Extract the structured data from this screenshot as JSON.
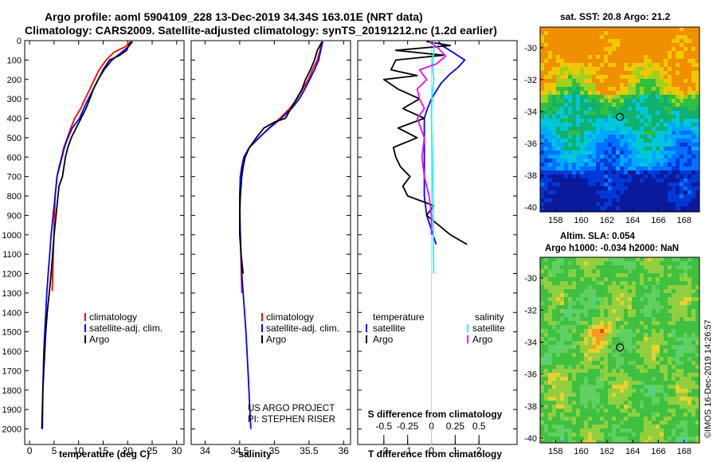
{
  "title": {
    "line1": "Argo profile: aoml 5904109_228 13-Dec-2019 34.34S 163.01E (NRT data)",
    "line2": "Climatology: CARS2009. Satellite-adjusted climatology: synTS_20191212.nc (1.2d earlier)"
  },
  "panel_titles": {
    "sst": "sat. SST: 20.8 Argo: 21.2",
    "sla1": "Altim. SLA: 0.054",
    "sla2": "Argo h1000: -0.034 h2000: NaN"
  },
  "credits": {
    "line1": "US ARGO PROJECT",
    "line2": "PI: STEPHEN RISER",
    "stamp": "©IMOS 16-Dec-2019 14:26:57"
  },
  "colors": {
    "argo": "#000000",
    "climatology": "#ff0000",
    "satellite": "#0000ff",
    "salinity_satellite": "#00ffff",
    "salinity_argo": "#ff00ff"
  },
  "chart_data": [
    {
      "type": "line",
      "xlabel": "temperature (deg C)",
      "ylabel": "",
      "xlim": [
        -1,
        31.5
      ],
      "ylim": [
        2080,
        0
      ],
      "xticks": [
        0,
        5,
        10,
        15,
        20,
        25,
        30
      ],
      "yticks": [
        0,
        100,
        200,
        300,
        400,
        500,
        600,
        700,
        800,
        900,
        1000,
        1100,
        1200,
        1300,
        1400,
        1500,
        1600,
        1700,
        1800,
        1900,
        2000
      ],
      "legend": [
        "climatology",
        "satellite-adj. clim.",
        "Argo"
      ],
      "series": [
        {
          "name": "climatology",
          "color": "#ff0000",
          "x": [
            20.6,
            19.6,
            17.2,
            15.6,
            14.2,
            13.2,
            12.3,
            11.3,
            10.4,
            9.2,
            8.4,
            7.7,
            7.0,
            6.5,
            6.0,
            5.6,
            5.2,
            4.6
          ],
          "y": [
            5,
            30,
            60,
            100,
            150,
            200,
            250,
            300,
            350,
            400,
            450,
            500,
            550,
            600,
            650,
            700,
            800,
            1290
          ]
        },
        {
          "name": "satellite-adj. clim.",
          "color": "#0000ff",
          "x": [
            21.0,
            20.2,
            18.8,
            16.8,
            15.2,
            14.0,
            13.0,
            11.4,
            10.2,
            8.7,
            7.8,
            7.1,
            6.6,
            6.1,
            5.6,
            5.2,
            4.8,
            4.4,
            4.1,
            3.8,
            3.5,
            3.3,
            3.1,
            2.9,
            2.7,
            2.6
          ],
          "y": [
            5,
            30,
            60,
            100,
            150,
            200,
            250,
            330,
            400,
            450,
            500,
            550,
            600,
            650,
            700,
            800,
            900,
            1000,
            1100,
            1200,
            1300,
            1400,
            1500,
            1600,
            1800,
            2000
          ]
        },
        {
          "name": "Argo",
          "color": "#000000",
          "x": [
            20.8,
            20.2,
            19.8,
            18.4,
            16.3,
            15.0,
            14.0,
            13.0,
            12.3,
            11.5,
            10.5,
            9.5,
            8.5,
            7.8,
            7.3,
            6.7,
            6.0,
            5.8,
            5.4,
            5.0,
            4.7,
            4.4,
            4.0,
            3.6,
            3.3,
            3.1,
            2.9,
            2.7,
            2.5
          ],
          "y": [
            5,
            25,
            50,
            75,
            100,
            150,
            200,
            250,
            300,
            350,
            400,
            450,
            500,
            550,
            600,
            700,
            750,
            800,
            900,
            1000,
            1100,
            1200,
            1300,
            1400,
            1500,
            1600,
            1700,
            1800,
            2000
          ]
        }
      ]
    },
    {
      "type": "line",
      "xlabel": "salinity",
      "ylabel": "",
      "xlim": [
        33.8,
        36.1
      ],
      "ylim": [
        2080,
        0
      ],
      "xticks": [
        34,
        34.5,
        35,
        35.5,
        36
      ],
      "legend": [
        "climatology",
        "satellite-adj. clim.",
        "Argo"
      ],
      "series": [
        {
          "name": "climatology",
          "color": "#ff0000",
          "x": [
            35.69,
            35.66,
            35.62,
            35.55,
            35.49,
            35.41,
            35.33,
            35.22,
            35.08,
            34.92,
            34.78,
            34.64,
            34.56,
            34.53,
            34.51,
            34.5,
            34.51,
            34.53
          ],
          "y": [
            5,
            50,
            100,
            150,
            200,
            250,
            300,
            350,
            400,
            450,
            500,
            550,
            600,
            650,
            700,
            800,
            1000,
            1300
          ]
        },
        {
          "name": "satellite-adj. clim.",
          "color": "#0000ff",
          "x": [
            35.7,
            35.67,
            35.64,
            35.58,
            35.51,
            35.44,
            35.36,
            35.25,
            35.1,
            34.93,
            34.78,
            34.64,
            34.56,
            34.53,
            34.51,
            34.5,
            34.5,
            34.51,
            34.52,
            34.53,
            34.55,
            34.57,
            34.59,
            34.62,
            34.66
          ],
          "y": [
            5,
            50,
            100,
            150,
            200,
            250,
            300,
            350,
            400,
            450,
            500,
            550,
            600,
            650,
            700,
            800,
            900,
            1000,
            1100,
            1200,
            1300,
            1400,
            1500,
            1700,
            2000
          ]
        },
        {
          "name": "Argo",
          "color": "#000000",
          "x": [
            35.69,
            35.62,
            35.58,
            35.52,
            35.45,
            35.4,
            35.32,
            35.24,
            35.16,
            35.0,
            34.85,
            34.74,
            34.64,
            34.58,
            34.55,
            34.53,
            34.51,
            34.5,
            34.5,
            34.52,
            34.55
          ],
          "y": [
            5,
            50,
            100,
            150,
            200,
            250,
            300,
            350,
            400,
            420,
            450,
            500,
            550,
            600,
            650,
            700,
            800,
            900,
            1000,
            1100,
            1200
          ]
        }
      ]
    },
    {
      "type": "line",
      "xlabel": "T difference from climatology",
      "ylabel": "",
      "xlim": [
        -3.1,
        3.6
      ],
      "ylim": [
        2080,
        0
      ],
      "xticks": [
        -2,
        -1,
        0,
        1,
        2
      ],
      "s_axis_label": "S difference from climatology",
      "s_ticks": [
        "-0.5",
        "-0.25",
        "0",
        "0.25",
        "0.5"
      ],
      "legend_left_title": "temperature",
      "legend_right_title": "salinity",
      "legend_left": [
        "satellite",
        "Argo"
      ],
      "legend_right": [
        "satellite",
        "Argo"
      ],
      "series": [
        {
          "name": "satellite",
          "color": "#0000ff",
          "x": [
            0.3,
            0.5,
            0.9,
            1.4,
            1.1,
            0.8,
            0.4,
            0.0,
            -0.2,
            -0.3,
            -0.3,
            -0.3,
            -0.3,
            -0.3,
            -0.2,
            0.2
          ],
          "y": [
            5,
            30,
            60,
            100,
            140,
            170,
            220,
            300,
            360,
            400,
            500,
            600,
            700,
            800,
            900,
            1050
          ]
        },
        {
          "name": "Argo",
          "color": "#000000",
          "x": [
            -0.2,
            0.8,
            -1.5,
            0.5,
            -1.5,
            -1.7,
            -0.6,
            -2.0,
            -1.4,
            -0.5,
            -1.2,
            -0.3,
            -1.4,
            -0.6,
            -1.6,
            -1.5,
            -1.3,
            -0.9,
            -1.2,
            -1.0,
            0.1,
            -0.2,
            0.3,
            0.8,
            1.5
          ],
          "y": [
            5,
            25,
            50,
            75,
            100,
            150,
            180,
            200,
            250,
            300,
            350,
            400,
            450,
            500,
            550,
            600,
            650,
            700,
            750,
            800,
            850,
            900,
            950,
            1000,
            1050
          ]
        },
        {
          "name": "satellite",
          "color": "#00ffff",
          "x": [
            0.1,
            0.1,
            0.05,
            0.05,
            0.1,
            0.05,
            0.02,
            0.0,
            0.02,
            0.04,
            0.05,
            0.06,
            0.07,
            0.08,
            0.08,
            0.09,
            0.09,
            0.1
          ],
          "y": [
            5,
            50,
            100,
            150,
            200,
            250,
            300,
            400,
            500,
            600,
            700,
            800,
            900,
            1000,
            1100,
            1150,
            1180,
            1200
          ]
        },
        {
          "name": "Argo",
          "color": "#ff00ff",
          "x": [
            -0.1,
            0.3,
            0.6,
            0.2,
            -0.5,
            -0.2,
            -0.6,
            -0.5,
            -0.3,
            -0.6,
            -0.3,
            -0.4,
            -0.3,
            -0.1,
            0.0,
            0.0
          ],
          "y": [
            5,
            40,
            80,
            120,
            150,
            200,
            250,
            300,
            350,
            400,
            500,
            600,
            700,
            800,
            900,
            1000
          ]
        }
      ]
    },
    {
      "type": "heatmap",
      "title": "sat. SST: 20.8 Argo: 21.2",
      "xticks": [
        "158",
        "160",
        "162",
        "164",
        "166",
        "168"
      ],
      "yticks": [
        "-30",
        "-32",
        "-34",
        "-36",
        "-38",
        "-40"
      ],
      "xlim": [
        156.8,
        169.2
      ],
      "ylim": [
        -40.3,
        -28.7
      ],
      "marker": {
        "lon": 163.01,
        "lat": -34.34
      }
    },
    {
      "type": "heatmap",
      "title": "Altim. SLA: 0.054",
      "subtitle": "Argo h1000: -0.034 h2000: NaN",
      "xticks": [
        "158",
        "160",
        "162",
        "164",
        "166",
        "168"
      ],
      "yticks": [
        "-30",
        "-32",
        "-34",
        "-36",
        "-38",
        "-40"
      ],
      "xlim": [
        156.8,
        169.2
      ],
      "ylim": [
        -40.3,
        -28.7
      ],
      "marker": {
        "lon": 163.01,
        "lat": -34.34
      }
    }
  ]
}
